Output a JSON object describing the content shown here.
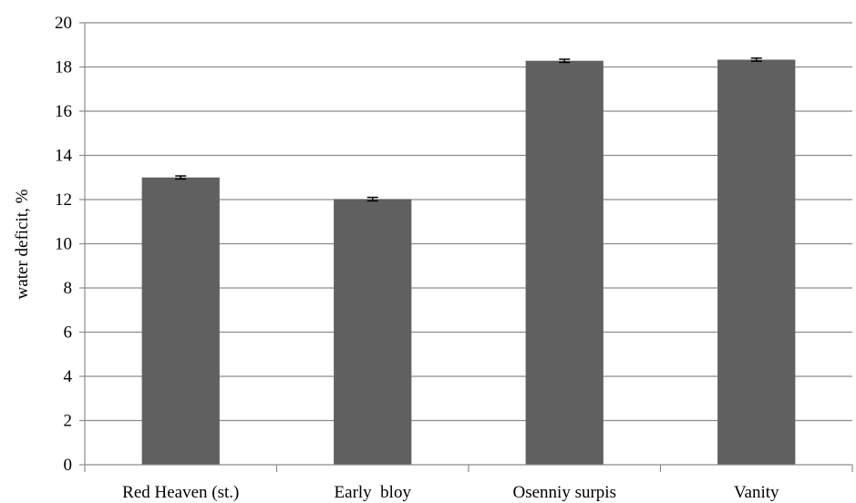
{
  "chart_data": {
    "type": "bar",
    "title": "",
    "xlabel": "",
    "ylabel": "water deficit, %",
    "categories": [
      "Red Heaven (st.)",
      "Early  bloy",
      "Osenniy surpis",
      "Vanity"
    ],
    "values": [
      13.0,
      12.02,
      18.28,
      18.33
    ],
    "errors": [
      0.07,
      0.08,
      0.07,
      0.07
    ],
    "ylim": [
      0,
      20
    ],
    "yticks": [
      0,
      2,
      4,
      6,
      8,
      10,
      12,
      14,
      16,
      18,
      20
    ],
    "grid": true,
    "legend": "none",
    "bar_color": "#606060",
    "grid_color": "#8c8c8c",
    "axis_color": "#8c8c8c"
  }
}
